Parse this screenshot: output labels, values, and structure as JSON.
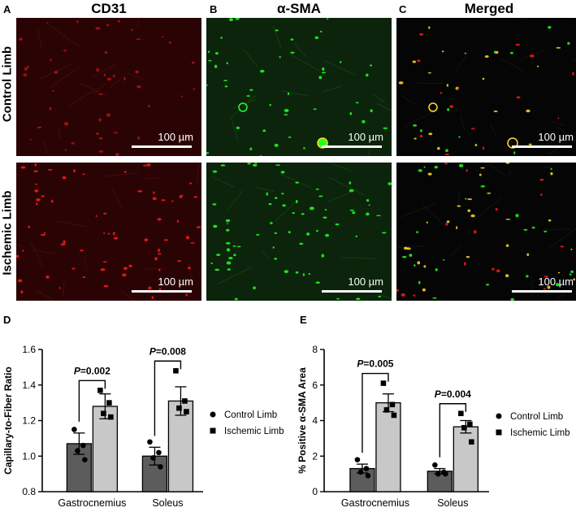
{
  "figure": {
    "columns": [
      {
        "letter": "A",
        "title": "CD31"
      },
      {
        "letter": "B",
        "title": "α-SMA"
      },
      {
        "letter": "C",
        "title": "Merged"
      }
    ],
    "rows": [
      {
        "title": "Control Limb"
      },
      {
        "title": "Ischemic Limb"
      }
    ],
    "scale_bar_label": "100 µm",
    "colors": {
      "red_channel": "#ff1a1a",
      "green_channel": "#22ff22",
      "merged_yellow": "#ffdd22",
      "dark_bar": "#5c5c5c",
      "light_bar": "#c8c8c8"
    }
  },
  "chart_data": [
    {
      "panel": "D",
      "type": "bar",
      "ylabel": "Capillary-to-Fiber Ratio",
      "ylim": [
        0.8,
        1.6
      ],
      "yticks": [
        "0.8",
        "1.0",
        "1.2",
        "1.4",
        "1.6"
      ],
      "categories": [
        "Gastrocnemius",
        "Soleus"
      ],
      "series": [
        {
          "name": "Control Limb",
          "values": [
            1.07,
            1.0
          ],
          "sem": [
            0.06,
            0.05
          ],
          "points": [
            [
              1.15,
              1.06,
              1.03,
              0.98
            ],
            [
              1.08,
              1.02,
              0.99,
              0.94
            ]
          ]
        },
        {
          "name": "Ischemic Limb",
          "values": [
            1.28,
            1.31
          ],
          "sem": [
            0.07,
            0.08
          ],
          "points": [
            [
              1.37,
              1.3,
              1.24,
              1.22
            ],
            [
              1.48,
              1.31,
              1.27,
              1.25
            ]
          ]
        }
      ],
      "annotations": [
        {
          "p_label": "P",
          "p_text": "=0.002",
          "category": "Gastrocnemius"
        },
        {
          "p_label": "P",
          "p_text": "=0.008",
          "category": "Soleus"
        }
      ],
      "legend": "right"
    },
    {
      "panel": "E",
      "type": "bar",
      "ylabel": "% Positive α-SMA Area",
      "ylim": [
        0,
        8
      ],
      "yticks": [
        "0",
        "2",
        "4",
        "6",
        "8"
      ],
      "categories": [
        "Gastrocnemius",
        "Soleus"
      ],
      "series": [
        {
          "name": "Control Limb",
          "values": [
            1.3,
            1.15
          ],
          "sem": [
            0.25,
            0.15
          ],
          "points": [
            [
              1.8,
              1.3,
              1.1,
              0.9
            ],
            [
              1.5,
              1.1,
              1.0,
              1.0
            ]
          ]
        },
        {
          "name": "Ischemic Limb",
          "values": [
            5.0,
            3.65
          ],
          "sem": [
            0.5,
            0.35
          ],
          "points": [
            [
              6.1,
              4.9,
              4.6,
              4.3
            ],
            [
              4.4,
              3.8,
              3.6,
              2.8
            ]
          ]
        }
      ],
      "annotations": [
        {
          "p_label": "P",
          "p_text": "=0.005",
          "category": "Gastrocnemius"
        },
        {
          "p_label": "P",
          "p_text": "=0.004",
          "category": "Soleus"
        }
      ],
      "legend": "right"
    }
  ]
}
